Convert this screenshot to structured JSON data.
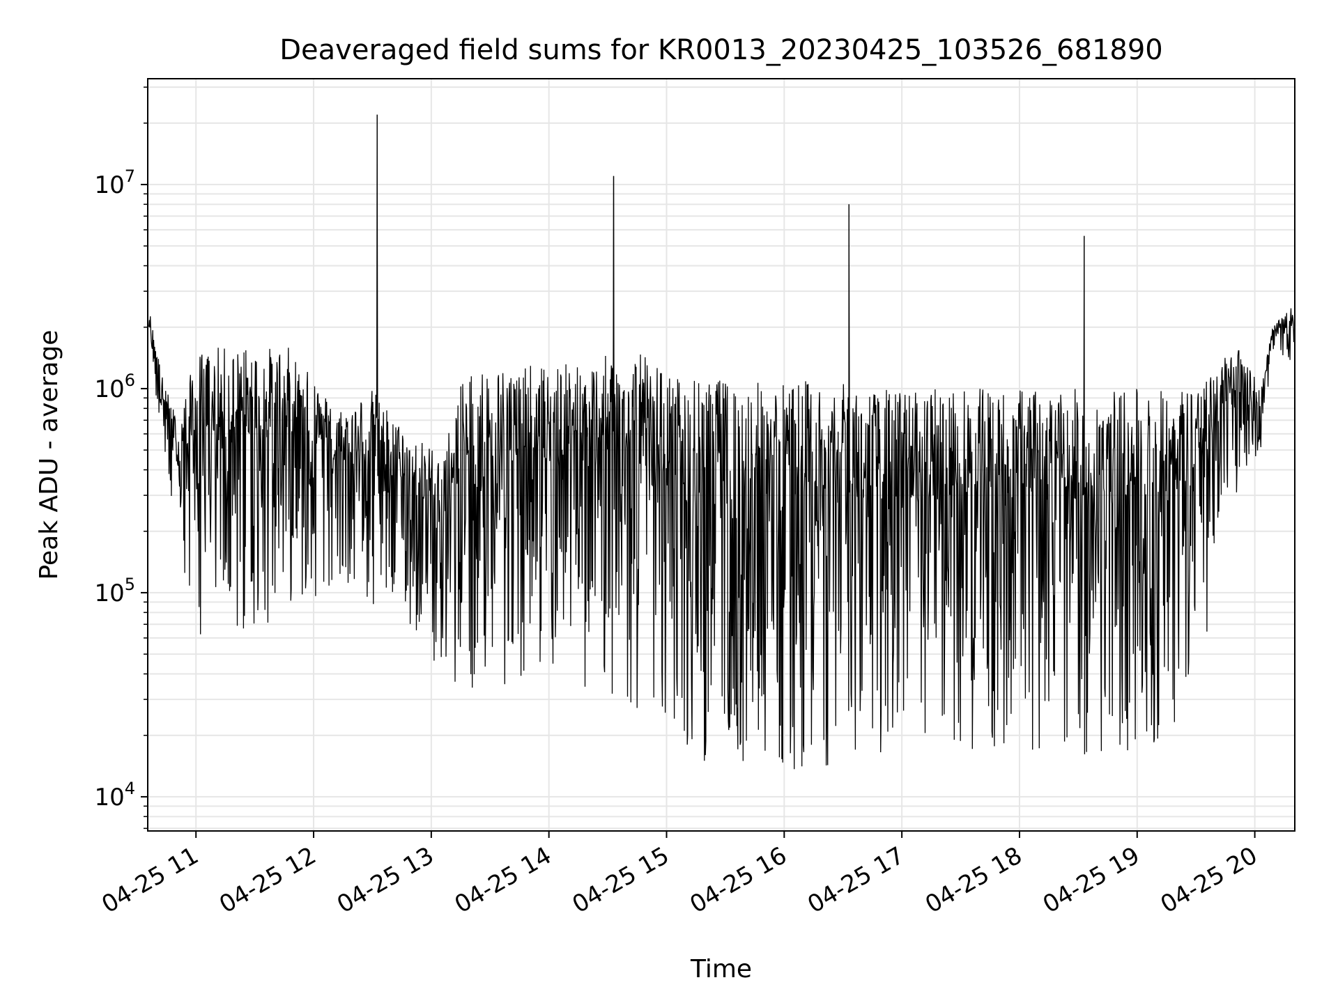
{
  "chart_data": {
    "type": "line",
    "title": "Deaveraged field sums for KR0013_20230425_103526_681890",
    "xlabel": "Time",
    "ylabel": "Peak ADU - average",
    "yscale": "log",
    "grid": true,
    "legend": "none",
    "x_unit": "hours",
    "xlim": [
      10.59,
      20.34
    ],
    "ylim": [
      6800,
      33000000
    ],
    "x_ticks": [
      {
        "value": 11,
        "label": "04-25 11"
      },
      {
        "value": 12,
        "label": "04-25 12"
      },
      {
        "value": 13,
        "label": "04-25 13"
      },
      {
        "value": 14,
        "label": "04-25 14"
      },
      {
        "value": 15,
        "label": "04-25 15"
      },
      {
        "value": 16,
        "label": "04-25 16"
      },
      {
        "value": 17,
        "label": "04-25 17"
      },
      {
        "value": 18,
        "label": "04-25 18"
      },
      {
        "value": 19,
        "label": "04-25 19"
      },
      {
        "value": 20,
        "label": "04-25 20"
      }
    ],
    "y_ticks": [
      {
        "value": 10000,
        "base": "10",
        "exp": "4"
      },
      {
        "value": 100000,
        "base": "10",
        "exp": "5"
      },
      {
        "value": 1000000,
        "base": "10",
        "exp": "6"
      },
      {
        "value": 10000000,
        "base": "10",
        "exp": "7"
      }
    ],
    "line_color": "#000000",
    "spikes": [
      {
        "x": 12.54,
        "y": 22000000
      },
      {
        "x": 14.55,
        "y": 11000000
      },
      {
        "x": 16.55,
        "y": 8000000
      },
      {
        "x": 18.55,
        "y": 5600000
      }
    ],
    "envelope": [
      {
        "x": 10.6,
        "hi": 2500000,
        "lo": 1600000
      },
      {
        "x": 10.72,
        "hi": 1100000,
        "lo": 500000
      },
      {
        "x": 10.85,
        "hi": 700000,
        "lo": 120000
      },
      {
        "x": 11.0,
        "hi": 1500000,
        "lo": 60000
      },
      {
        "x": 11.15,
        "hi": 1600000,
        "lo": 60000
      },
      {
        "x": 11.5,
        "hi": 1600000,
        "lo": 60000
      },
      {
        "x": 11.8,
        "hi": 1600000,
        "lo": 90000
      },
      {
        "x": 12.2,
        "hi": 800000,
        "lo": 100000
      },
      {
        "x": 12.5,
        "hi": 1000000,
        "lo": 80000
      },
      {
        "x": 12.8,
        "hi": 600000,
        "lo": 70000
      },
      {
        "x": 13.1,
        "hi": 500000,
        "lo": 40000
      },
      {
        "x": 13.3,
        "hi": 1300000,
        "lo": 30000
      },
      {
        "x": 13.6,
        "hi": 1300000,
        "lo": 35000
      },
      {
        "x": 14.0,
        "hi": 1300000,
        "lo": 40000
      },
      {
        "x": 14.4,
        "hi": 1400000,
        "lo": 30000
      },
      {
        "x": 14.7,
        "hi": 1600000,
        "lo": 25000
      },
      {
        "x": 15.0,
        "hi": 1200000,
        "lo": 20000
      },
      {
        "x": 15.3,
        "hi": 1100000,
        "lo": 15000
      },
      {
        "x": 15.8,
        "hi": 1100000,
        "lo": 13000
      },
      {
        "x": 16.3,
        "hi": 1100000,
        "lo": 14000
      },
      {
        "x": 16.8,
        "hi": 1000000,
        "lo": 15000
      },
      {
        "x": 17.3,
        "hi": 1000000,
        "lo": 15000
      },
      {
        "x": 17.8,
        "hi": 1000000,
        "lo": 16000
      },
      {
        "x": 18.3,
        "hi": 1000000,
        "lo": 16000
      },
      {
        "x": 18.8,
        "hi": 1000000,
        "lo": 15000
      },
      {
        "x": 19.3,
        "hi": 1000000,
        "lo": 18000
      },
      {
        "x": 19.6,
        "hi": 1100000,
        "lo": 60000
      },
      {
        "x": 19.75,
        "hi": 1500000,
        "lo": 250000
      },
      {
        "x": 19.9,
        "hi": 1600000,
        "lo": 350000
      },
      {
        "x": 20.05,
        "hi": 1000000,
        "lo": 500000
      },
      {
        "x": 20.15,
        "hi": 2000000,
        "lo": 1400000
      },
      {
        "x": 20.34,
        "hi": 2600000,
        "lo": 1300000
      }
    ]
  }
}
